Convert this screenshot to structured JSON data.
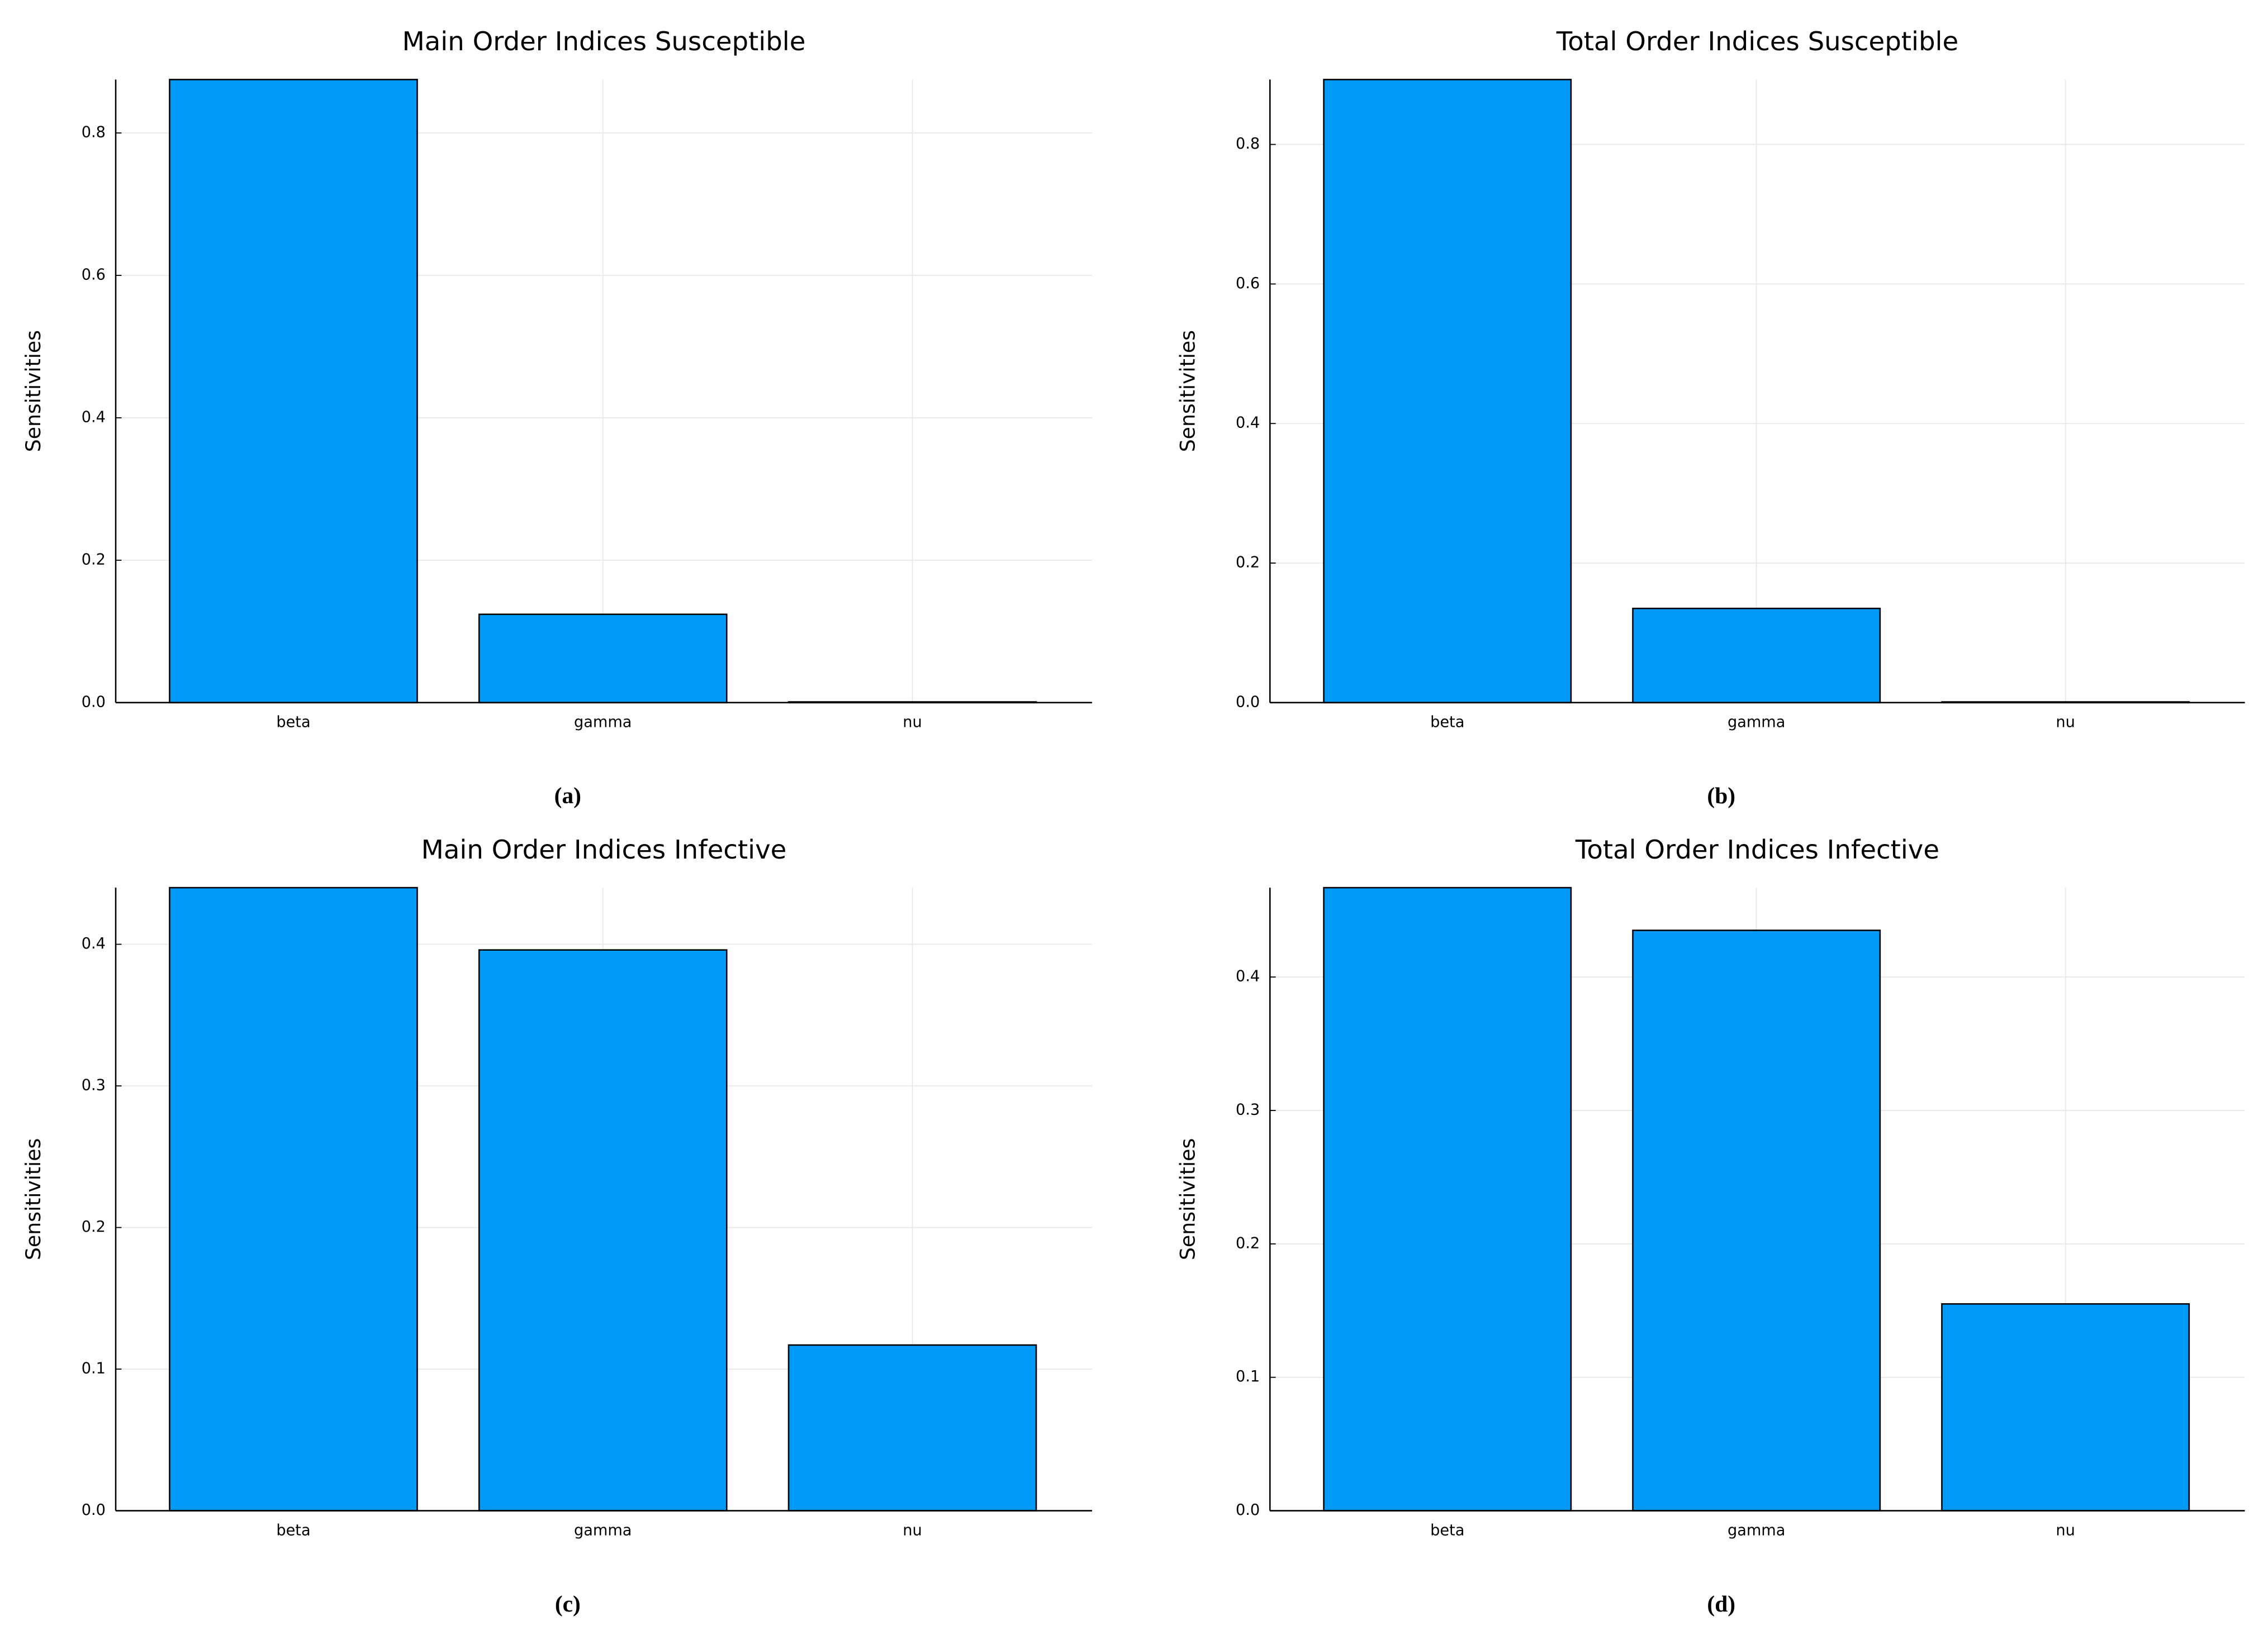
{
  "chart_data": [
    {
      "type": "bar",
      "title": "Main Order Indices Susceptible",
      "ylabel": "Sensitivities",
      "caption": "(a)",
      "categories": [
        "beta",
        "gamma",
        "nu"
      ],
      "values": [
        0.875,
        0.124,
        0.001
      ],
      "color": "#009af9",
      "ylim": [
        0,
        0.875
      ],
      "yticks": [
        {
          "value": 0,
          "label": "0.0"
        },
        {
          "value": 0.2,
          "label": "0.2"
        },
        {
          "value": 0.4,
          "label": "0.4"
        },
        {
          "value": 0.6,
          "label": "0.6"
        },
        {
          "value": 0.8,
          "label": "0.8"
        }
      ],
      "grid": true
    },
    {
      "type": "bar",
      "title": "Total Order Indices Susceptible",
      "ylabel": "Sensitivities",
      "caption": "(b)",
      "categories": [
        "beta",
        "gamma",
        "nu"
      ],
      "values": [
        0.893,
        0.135,
        0.001
      ],
      "color": "#009af9",
      "ylim": [
        0,
        0.893
      ],
      "yticks": [
        {
          "value": 0,
          "label": "0.0"
        },
        {
          "value": 0.2,
          "label": "0.2"
        },
        {
          "value": 0.4,
          "label": "0.4"
        },
        {
          "value": 0.6,
          "label": "0.6"
        },
        {
          "value": 0.8,
          "label": "0.8"
        }
      ],
      "grid": true
    },
    {
      "type": "bar",
      "title": "Main Order Indices Infective",
      "ylabel": "Sensitivities",
      "caption": "(c)",
      "categories": [
        "beta",
        "gamma",
        "nu"
      ],
      "values": [
        0.44,
        0.396,
        0.117
      ],
      "color": "#009af9",
      "ylim": [
        0,
        0.44
      ],
      "yticks": [
        {
          "value": 0,
          "label": "0.0"
        },
        0.1,
        0.2,
        0.3,
        0.4
      ],
      "grid": true
    },
    {
      "type": "bar",
      "title": "Total Order Indices Infective",
      "ylabel": "Sensitivities",
      "caption": "(d)",
      "categories": [
        "beta",
        "gamma",
        "nu"
      ],
      "values": [
        0.467,
        0.435,
        0.155
      ],
      "color": "#009af9",
      "ylim": [
        0,
        0.467
      ],
      "yticks": [
        {
          "value": 0,
          "label": "0.0"
        },
        0.1,
        0.2,
        0.3,
        0.4
      ],
      "grid": true
    }
  ]
}
